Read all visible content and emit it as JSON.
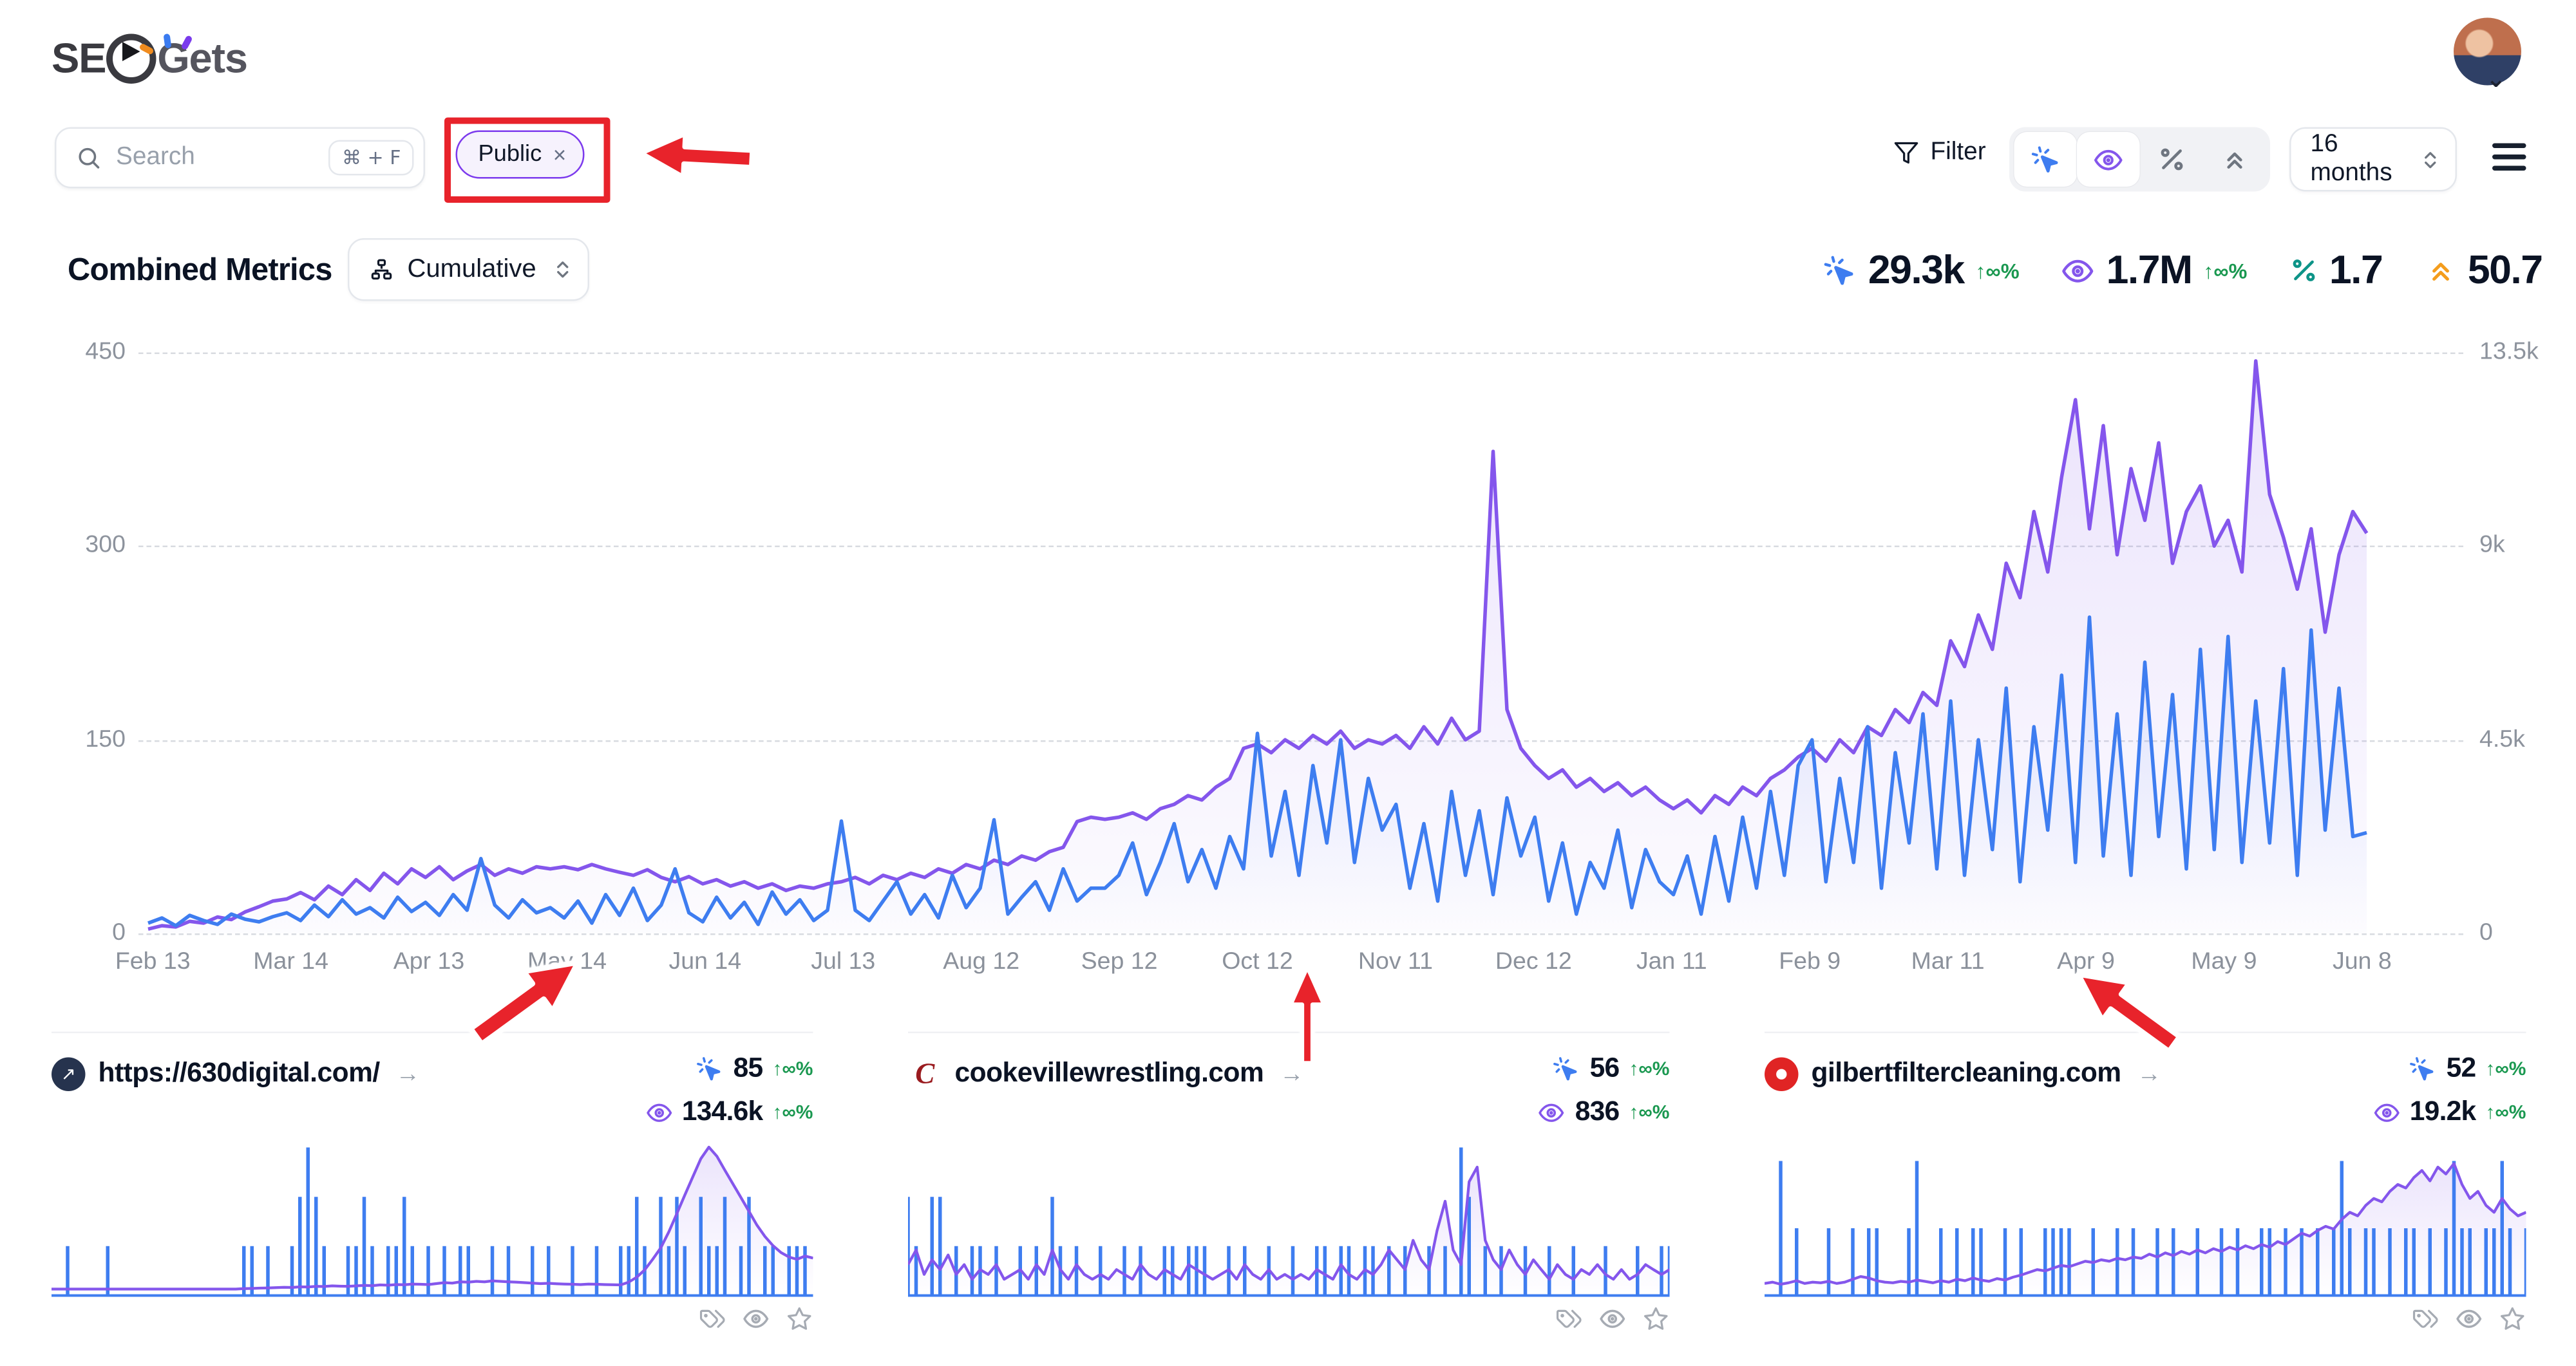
{
  "header": {
    "logo_primary": "SE",
    "logo_secondary": "Gets"
  },
  "toolbar": {
    "search": {
      "placeholder": "Search",
      "shortcut": "⌘ + F"
    },
    "filter_tag": {
      "label": "Public",
      "remove": "×"
    },
    "filter_label": "Filter",
    "date_range": "16 months"
  },
  "metrics_header": {
    "title": "Combined Metrics",
    "aggregation": "Cumulative"
  },
  "summary": {
    "clicks": {
      "value": "29.3k",
      "change": "↑∞%"
    },
    "impressions": {
      "value": "1.7M",
      "change": "↑∞%"
    },
    "ctr": {
      "value": "1.7"
    },
    "position": {
      "value": "50.7"
    }
  },
  "colors": {
    "clicks_blue": "#3e7df0",
    "impressions_purple": "#8456ec",
    "positive_green": "#1a9850",
    "ctr_teal": "#0d9488",
    "position_orange": "#f49d1d",
    "annotation_red": "#e8232b"
  },
  "chart_data": {
    "type": "line",
    "title": "Combined Metrics",
    "x_tick_labels": [
      "Feb 13",
      "Mar 14",
      "Apr 13",
      "May 14",
      "Jun 14",
      "Jul 13",
      "Aug 12",
      "Sep 12",
      "Oct 12",
      "Nov 11",
      "Dec 12",
      "Jan 11",
      "Feb 9",
      "Mar 11",
      "Apr 9",
      "May 9",
      "Jun 8"
    ],
    "left_axis": {
      "metric": "Clicks",
      "max": 450,
      "tick_labels": [
        "450",
        "300",
        "150",
        "0"
      ]
    },
    "right_axis": {
      "metric": "Impressions",
      "max": 13500,
      "tick_labels": [
        "13.5k",
        "9k",
        "4.5k",
        "0"
      ]
    },
    "grid": "dashed",
    "series": [
      {
        "name": "Clicks",
        "axis": "left",
        "color": "#3e7df0",
        "values": [
          8,
          12,
          6,
          14,
          10,
          7,
          15,
          11,
          9,
          13,
          16,
          10,
          22,
          13,
          26,
          15,
          20,
          12,
          28,
          17,
          24,
          14,
          30,
          18,
          58,
          22,
          12,
          26,
          16,
          20,
          12,
          25,
          8,
          30,
          14,
          35,
          10,
          22,
          50,
          16,
          9,
          28,
          12,
          24,
          7,
          32,
          15,
          26,
          10,
          18,
          87,
          18,
          10,
          25,
          40,
          15,
          30,
          12,
          45,
          20,
          35,
          88,
          15,
          28,
          40,
          18,
          50,
          25,
          35,
          35,
          45,
          70,
          30,
          55,
          85,
          40,
          65,
          35,
          75,
          50,
          155,
          60,
          110,
          45,
          130,
          70,
          150,
          55,
          120,
          80,
          100,
          35,
          85,
          25,
          110,
          45,
          95,
          30,
          105,
          60,
          90,
          25,
          70,
          15,
          55,
          35,
          80,
          20,
          65,
          40,
          30,
          60,
          15,
          75,
          25,
          90,
          35,
          110,
          45,
          130,
          150,
          40,
          120,
          55,
          160,
          35,
          140,
          70,
          170,
          50,
          180,
          45,
          150,
          65,
          190,
          40,
          160,
          80,
          200,
          55,
          245,
          60,
          170,
          45,
          210,
          75,
          185,
          50,
          220,
          65,
          230,
          55,
          180,
          70,
          205,
          45,
          235,
          80,
          190,
          75,
          78
        ]
      },
      {
        "name": "Impressions",
        "axis": "right",
        "color": "#8456ec",
        "values": [
          100,
          180,
          150,
          280,
          240,
          380,
          320,
          500,
          620,
          750,
          800,
          950,
          780,
          1100,
          900,
          1250,
          1000,
          1400,
          1150,
          1500,
          1300,
          1550,
          1250,
          1450,
          1600,
          1350,
          1500,
          1400,
          1550,
          1500,
          1550,
          1480,
          1600,
          1500,
          1420,
          1350,
          1480,
          1300,
          1200,
          1320,
          1150,
          1250,
          1100,
          1200,
          1050,
          1150,
          1000,
          1100,
          1050,
          1150,
          1200,
          1300,
          1150,
          1350,
          1250,
          1400,
          1300,
          1500,
          1400,
          1600,
          1500,
          1700,
          1600,
          1800,
          1700,
          1900,
          2000,
          2600,
          2700,
          2650,
          2700,
          2800,
          2650,
          2900,
          3000,
          3200,
          3100,
          3400,
          3600,
          4300,
          4400,
          4200,
          4500,
          4300,
          4600,
          4400,
          4700,
          4300,
          4500,
          4400,
          4600,
          4300,
          4800,
          4400,
          5000,
          4500,
          4700,
          11200,
          5200,
          4300,
          3900,
          3600,
          3800,
          3400,
          3600,
          3300,
          3500,
          3200,
          3400,
          3100,
          2900,
          3100,
          2800,
          3200,
          3000,
          3400,
          3200,
          3600,
          3800,
          4100,
          4300,
          4000,
          4500,
          4200,
          4800,
          4600,
          5200,
          4900,
          5600,
          5300,
          6800,
          6200,
          7400,
          6600,
          8600,
          7800,
          9800,
          8400,
          10600,
          12400,
          9400,
          11800,
          8800,
          10800,
          9600,
          11400,
          8600,
          9800,
          10400,
          9000,
          9600,
          8400,
          13300,
          10200,
          9200,
          8000,
          9400,
          7000,
          8800,
          9800,
          9300
        ]
      }
    ]
  },
  "sites": [
    {
      "url": "https://630digital.com/",
      "clicks": "85",
      "clicks_change": "↑∞%",
      "impressions": "134.6k",
      "impressions_change": "↑∞%",
      "chart_data": {
        "type": "line",
        "series": [
          {
            "name": "Clicks",
            "max": 3,
            "values": [
              0,
              0,
              1,
              0,
              0,
              0,
              0,
              1,
              0,
              0,
              0,
              0,
              0,
              0,
              0,
              0,
              0,
              0,
              0,
              0,
              0,
              0,
              0,
              0,
              1,
              1,
              0,
              1,
              0,
              0,
              1,
              2,
              3,
              2,
              1,
              0,
              0,
              1,
              1,
              2,
              1,
              0,
              1,
              1,
              2,
              1,
              0,
              1,
              0,
              1,
              0,
              1,
              1,
              0,
              0,
              1,
              0,
              1,
              0,
              0,
              1,
              0,
              1,
              0,
              0,
              1,
              0,
              0,
              1,
              0,
              0,
              1,
              1,
              2,
              1,
              0,
              2,
              1,
              2,
              1,
              0,
              2,
              1,
              1,
              2,
              0,
              1,
              2,
              0,
              1,
              1,
              0,
              1,
              1,
              1,
              0
            ]
          },
          {
            "name": "Impressions",
            "max": 3200,
            "values": [
              0,
              0,
              0,
              0,
              0,
              0,
              0,
              0,
              0,
              0,
              0,
              0,
              0,
              0,
              0,
              0,
              0,
              0,
              0,
              0,
              0,
              0,
              0,
              0,
              10,
              15,
              20,
              25,
              30,
              40,
              35,
              50,
              45,
              60,
              55,
              70,
              65,
              60,
              70,
              80,
              75,
              90,
              85,
              100,
              95,
              110,
              105,
              100,
              120,
              140,
              130,
              160,
              150,
              170,
              160,
              180,
              170,
              160,
              150,
              140,
              130,
              120,
              125,
              115,
              110,
              105,
              100,
              110,
              105,
              100,
              95,
              90,
              150,
              260,
              420,
              650,
              900,
              1250,
              1650,
              2050,
              2450,
              2850,
              3100,
              2900,
              2600,
              2300,
              2000,
              1700,
              1400,
              1150,
              950,
              800,
              700,
              650,
              720,
              680
            ]
          }
        ]
      }
    },
    {
      "url": "cookevillewrestling.com",
      "clicks": "56",
      "clicks_change": "↑∞%",
      "impressions": "836",
      "impressions_change": "↑∞%",
      "chart_data": {
        "type": "line",
        "series": [
          {
            "name": "Clicks",
            "max": 3,
            "values": [
              2,
              1,
              0,
              2,
              2,
              0,
              1,
              0,
              1,
              1,
              0,
              1,
              0,
              0,
              1,
              0,
              1,
              0,
              2,
              1,
              0,
              1,
              0,
              0,
              1,
              0,
              0,
              1,
              0,
              1,
              0,
              0,
              1,
              1,
              0,
              1,
              1,
              1,
              0,
              0,
              1,
              0,
              1,
              0,
              0,
              1,
              0,
              0,
              1,
              0,
              0,
              1,
              1,
              0,
              1,
              1,
              0,
              1,
              1,
              0,
              1,
              0,
              1,
              0,
              0,
              1,
              0,
              1,
              0,
              3,
              2,
              0,
              1,
              0,
              1,
              0,
              0,
              1,
              0,
              0,
              1,
              0,
              0,
              1,
              0,
              0,
              0,
              1,
              0,
              0,
              0,
              1,
              0,
              0,
              1,
              1
            ]
          },
          {
            "name": "Impressions",
            "max": 30,
            "values": [
              5,
              8,
              3,
              6,
              4,
              7,
              3,
              5,
              2,
              4,
              3,
              5,
              2,
              3,
              4,
              2,
              5,
              3,
              8,
              4,
              2,
              5,
              3,
              2,
              3,
              2,
              4,
              3,
              2,
              5,
              3,
              2,
              4,
              3,
              2,
              5,
              4,
              3,
              2,
              3,
              4,
              2,
              5,
              3,
              2,
              4,
              2,
              3,
              2,
              3,
              2,
              4,
              3,
              2,
              5,
              3,
              2,
              4,
              3,
              5,
              8,
              6,
              4,
              10,
              6,
              4,
              12,
              18,
              8,
              5,
              22,
              25,
              10,
              6,
              4,
              8,
              5,
              3,
              6,
              4,
              2,
              5,
              3,
              2,
              4,
              3,
              5,
              3,
              2,
              4,
              2,
              3,
              5,
              4,
              3,
              4
            ]
          }
        ]
      }
    },
    {
      "url": "gilbertfiltercleaning.com",
      "clicks": "52",
      "clicks_change": "↑∞%",
      "impressions": "19.2k",
      "impressions_change": "↑∞%",
      "chart_data": {
        "type": "line",
        "series": [
          {
            "name": "Clicks",
            "max": 2.2,
            "values": [
              0,
              0,
              2,
              0,
              1,
              0,
              0,
              0,
              1,
              0,
              0,
              1,
              0,
              1,
              1,
              0,
              0,
              0,
              1,
              2,
              0,
              0,
              1,
              0,
              1,
              0,
              1,
              1,
              0,
              0,
              1,
              0,
              1,
              0,
              0,
              1,
              1,
              1,
              1,
              0,
              0,
              1,
              0,
              0,
              1,
              0,
              1,
              0,
              0,
              1,
              0,
              1,
              0,
              0,
              1,
              0,
              0,
              1,
              0,
              1,
              0,
              0,
              1,
              1,
              0,
              1,
              0,
              1,
              0,
              1,
              0,
              1,
              2,
              1,
              0,
              1,
              1,
              0,
              1,
              0,
              1,
              1,
              0,
              1,
              0,
              1,
              2,
              1,
              1,
              0,
              1,
              1,
              2,
              1,
              0,
              1
            ]
          },
          {
            "name": "Impressions",
            "max": 210,
            "values": [
              8,
              10,
              7,
              9,
              12,
              8,
              10,
              9,
              11,
              8,
              10,
              14,
              18,
              16,
              12,
              10,
              9,
              11,
              10,
              13,
              11,
              9,
              12,
              10,
              14,
              12,
              16,
              13,
              11,
              15,
              13,
              17,
              20,
              24,
              28,
              26,
              30,
              34,
              32,
              36,
              40,
              38,
              42,
              40,
              44,
              42,
              46,
              44,
              50,
              46,
              52,
              48,
              54,
              50,
              56,
              52,
              58,
              54,
              60,
              56,
              62,
              58,
              64,
              60,
              68,
              64,
              72,
              80,
              76,
              84,
              90,
              86,
              100,
              110,
              105,
              120,
              130,
              125,
              140,
              150,
              145,
              160,
              170,
              155,
              175,
              165,
              180,
              150,
              130,
              140,
              120,
              110,
              130,
              115,
              105,
              110
            ]
          }
        ]
      }
    }
  ]
}
